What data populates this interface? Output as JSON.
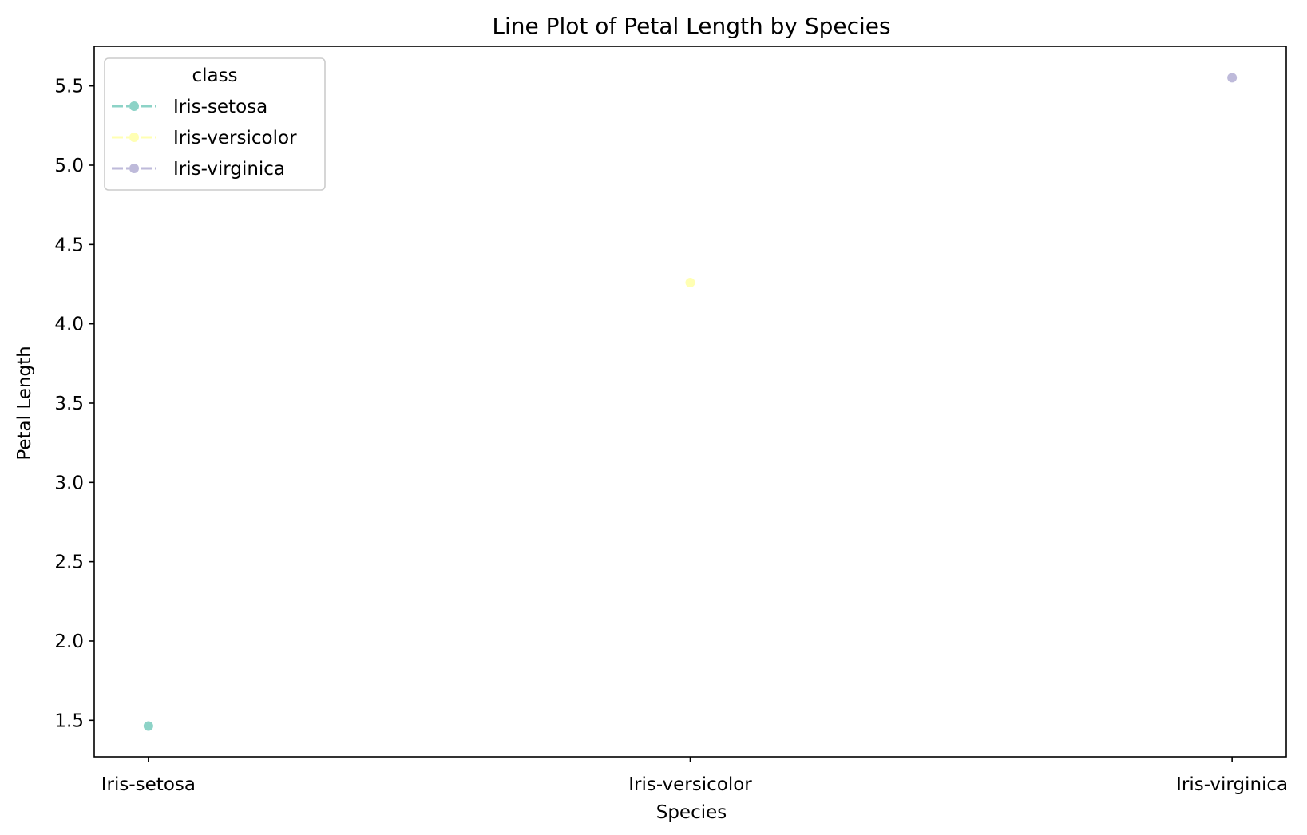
{
  "chart_data": {
    "type": "line",
    "title": "Line Plot of Petal Length by Species",
    "xlabel": "Species",
    "ylabel": "Petal Length",
    "categories": [
      "Iris-setosa",
      "Iris-versicolor",
      "Iris-virginica"
    ],
    "ylim": [
      1.27,
      5.75
    ],
    "yticks": [
      1.5,
      2.0,
      2.5,
      3.0,
      3.5,
      4.0,
      4.5,
      5.0,
      5.5
    ],
    "ytick_labels": [
      "1.5",
      "2.0",
      "2.5",
      "3.0",
      "3.5",
      "4.0",
      "4.5",
      "5.0",
      "5.5"
    ],
    "grid": false,
    "legend": {
      "title": "class",
      "placement": "top-left"
    },
    "series": [
      {
        "name": "Iris-setosa",
        "color": "#8dd3c7",
        "points": [
          {
            "x": "Iris-setosa",
            "y": 1.464
          }
        ]
      },
      {
        "name": "Iris-versicolor",
        "color": "#ffffb3",
        "points": [
          {
            "x": "Iris-versicolor",
            "y": 4.26
          }
        ]
      },
      {
        "name": "Iris-virginica",
        "color": "#bebada",
        "points": [
          {
            "x": "Iris-virginica",
            "y": 5.552
          }
        ]
      }
    ]
  }
}
